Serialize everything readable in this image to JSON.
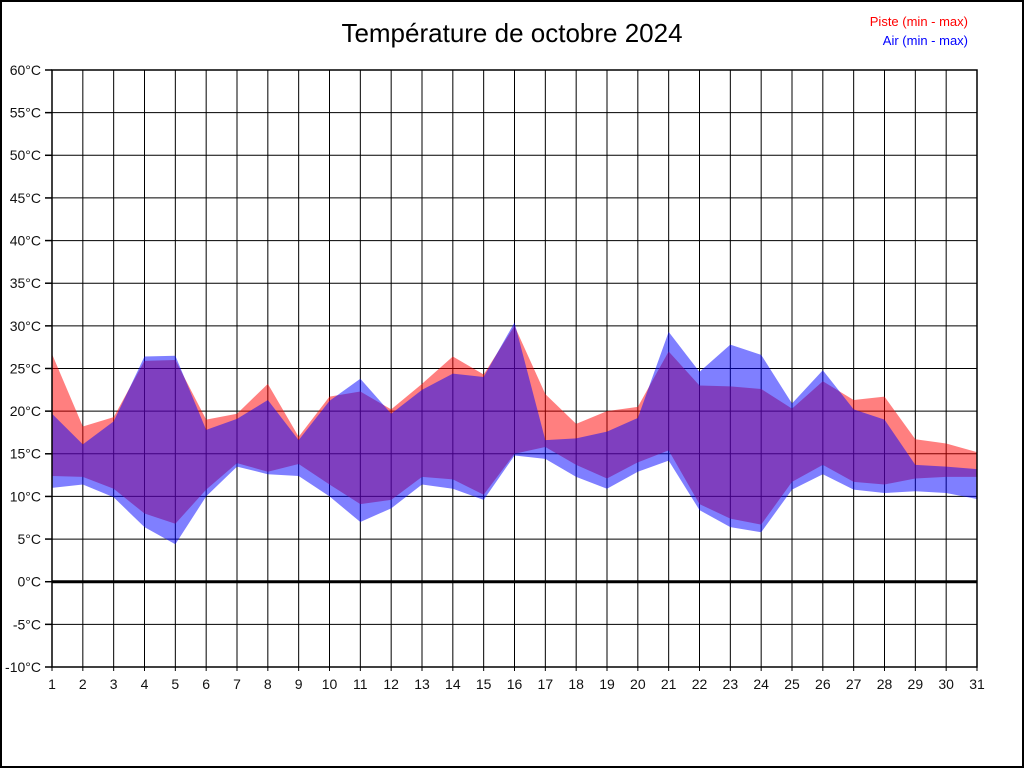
{
  "title": "Température de octobre 2024",
  "legend": {
    "piste_label": "Piste (min - max)",
    "air_label": "Air (min - max)"
  },
  "colors": {
    "piste": "#ff0000",
    "air": "#0000ff",
    "piste_fill": "rgba(255,0,0,0.5)",
    "air_fill": "rgba(0,0,255,0.5)",
    "grid": "#000000",
    "zero_line": "#000000",
    "tick_text": "#111111"
  },
  "chart_data": {
    "type": "area",
    "title": "Température de octobre 2024",
    "xlabel": "",
    "ylabel": "",
    "x": [
      1,
      2,
      3,
      4,
      5,
      6,
      7,
      8,
      9,
      10,
      11,
      12,
      13,
      14,
      15,
      16,
      17,
      18,
      19,
      20,
      21,
      22,
      23,
      24,
      25,
      26,
      27,
      28,
      29,
      30,
      31
    ],
    "xtick_labels": [
      "1",
      "2",
      "3",
      "4",
      "5",
      "6",
      "7",
      "8",
      "9",
      "10",
      "11",
      "12",
      "13",
      "14",
      "15",
      "16",
      "17",
      "18",
      "19",
      "20",
      "21",
      "22",
      "23",
      "24",
      "25",
      "26",
      "27",
      "28",
      "29",
      "30",
      "31"
    ],
    "ylim": [
      -10,
      60
    ],
    "ytick_step": 5,
    "ytick_labels": [
      "60°C",
      "55°C",
      "50°C",
      "45°C",
      "40°C",
      "35°C",
      "30°C",
      "25°C",
      "20°C",
      "15°C",
      "10°C",
      "5°C",
      "0°C",
      "-5°C",
      "-10°C"
    ],
    "grid": true,
    "legend_position": "top-right",
    "zero_line": 0,
    "series": [
      {
        "id": "piste",
        "name": "Piste (min - max)",
        "color": "#ff0000",
        "fill": "rgba(255,0,0,0.5)",
        "min": [
          12.4,
          12.3,
          10.9,
          8.0,
          6.8,
          10.8,
          13.9,
          12.9,
          13.8,
          11.4,
          9.1,
          9.6,
          12.3,
          12.0,
          10.2,
          15.0,
          15.8,
          13.7,
          12.1,
          14.0,
          15.4,
          9.1,
          7.4,
          6.7,
          11.7,
          13.7,
          11.7,
          11.4,
          12.1,
          12.3,
          12.3
        ],
        "max": [
          26.7,
          18.2,
          19.3,
          25.9,
          26.0,
          19.0,
          19.7,
          23.2,
          17.0,
          21.7,
          22.3,
          20.2,
          23.2,
          26.4,
          24.3,
          30.0,
          22.0,
          18.5,
          20.0,
          20.5,
          27.0,
          23.0,
          22.9,
          22.6,
          20.3,
          23.5,
          21.3,
          21.7,
          16.7,
          16.2,
          15.2
        ]
      },
      {
        "id": "air",
        "name": "Air (min - max)",
        "color": "#0000ff",
        "fill": "rgba(0,0,255,0.5)",
        "min": [
          11.0,
          11.4,
          9.9,
          6.4,
          4.4,
          10.0,
          13.5,
          12.6,
          12.4,
          10.0,
          7.0,
          8.6,
          11.4,
          10.9,
          9.6,
          14.8,
          14.4,
          12.3,
          10.9,
          12.9,
          14.2,
          8.4,
          6.4,
          5.8,
          10.8,
          12.6,
          10.8,
          10.4,
          10.6,
          10.4,
          9.7
        ],
        "max": [
          19.7,
          16.1,
          18.8,
          26.4,
          26.5,
          17.8,
          19.1,
          21.3,
          16.6,
          21.2,
          23.8,
          19.7,
          22.5,
          24.4,
          24.0,
          30.4,
          16.6,
          16.8,
          17.6,
          19.2,
          29.3,
          24.6,
          27.8,
          26.6,
          20.9,
          24.8,
          20.2,
          19.0,
          13.7,
          13.5,
          13.2
        ]
      }
    ]
  }
}
